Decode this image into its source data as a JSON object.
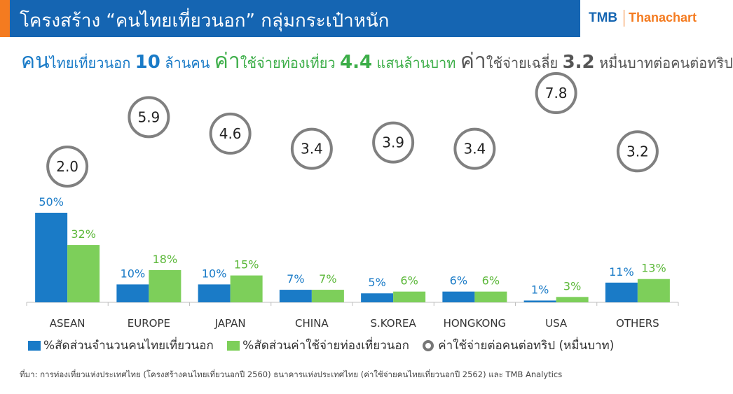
{
  "header": {
    "title": "โครงสร้าง “คนไทยเที่ยวนอก” กลุ่มกระเป๋าหนัก",
    "logo_tmb": "TMB",
    "logo_thanachart": "Thanachart"
  },
  "subtitle": {
    "p1": "คน",
    "p2": "ไทยเที่ยวนอก ",
    "p3": "10",
    "p4": " ล้านคน ",
    "p5": "ค่า",
    "p6": "ใช้จ่ายท่องเที่ยว ",
    "p7": "4.4",
    "p8": " แสนล้านบาท ",
    "p9": "ค่า",
    "p10": "ใช้จ่ายเฉลี่ย ",
    "p11": "3.2",
    "p12": " หมื่นบาทต่อคนต่อทริป"
  },
  "chart_data": {
    "type": "bar",
    "categories": [
      "ASEAN",
      "EUROPE",
      "JAPAN",
      "CHINA",
      "S.KOREA",
      "HONGKONG",
      "USA",
      "OTHERS"
    ],
    "series": [
      {
        "name": "%สัดส่วนจำนวนคนไทยเที่ยวนอก",
        "values": [
          50,
          10,
          10,
          7,
          5,
          6,
          1,
          11
        ],
        "labels": [
          "50%",
          "10%",
          "10%",
          "7%",
          "5%",
          "6%",
          "1%",
          "11%"
        ],
        "color": "#1a7bc7"
      },
      {
        "name": "%สัดส่วนค่าใช้จ่ายท่องเที่ยวนอก",
        "values": [
          32,
          18,
          15,
          7,
          6,
          6,
          3,
          13
        ],
        "labels": [
          "32%",
          "18%",
          "15%",
          "7%",
          "6%",
          "6%",
          "3%",
          "13%"
        ],
        "color": "#7dcf5a"
      }
    ],
    "circle_series": {
      "name": "ค่าใช้จ่ายต่อคนต่อทริป (หมื่นบาท)",
      "values": [
        2.0,
        5.9,
        4.6,
        3.4,
        3.9,
        3.4,
        7.8,
        3.2
      ],
      "labels": [
        "2.0",
        "5.9",
        "4.6",
        "3.4",
        "3.9",
        "3.4",
        "7.8",
        "3.2"
      ],
      "color": "#808080"
    },
    "ylim": [
      0,
      50
    ],
    "grid": false,
    "legend_position": "bottom"
  },
  "legend": {
    "item1": "%สัดส่วนจำนวนคนไทยเที่ยวนอก",
    "item2": "%สัดส่วนค่าใช้จ่ายท่องเที่ยวนอก",
    "item3": "ค่าใช้จ่ายต่อคนต่อทริป (หมื่นบาท)"
  },
  "source": "ที่มา: การท่องเที่ยวแห่งประเทศไทย (โครงสร้างคนไทยเที่ยวนอกปี 2560) ธนาคารแห่งประเทศไทย (ค่าใช้จ่ายคนไทยเที่ยวนอกปี 2562) และ TMB Analytics"
}
